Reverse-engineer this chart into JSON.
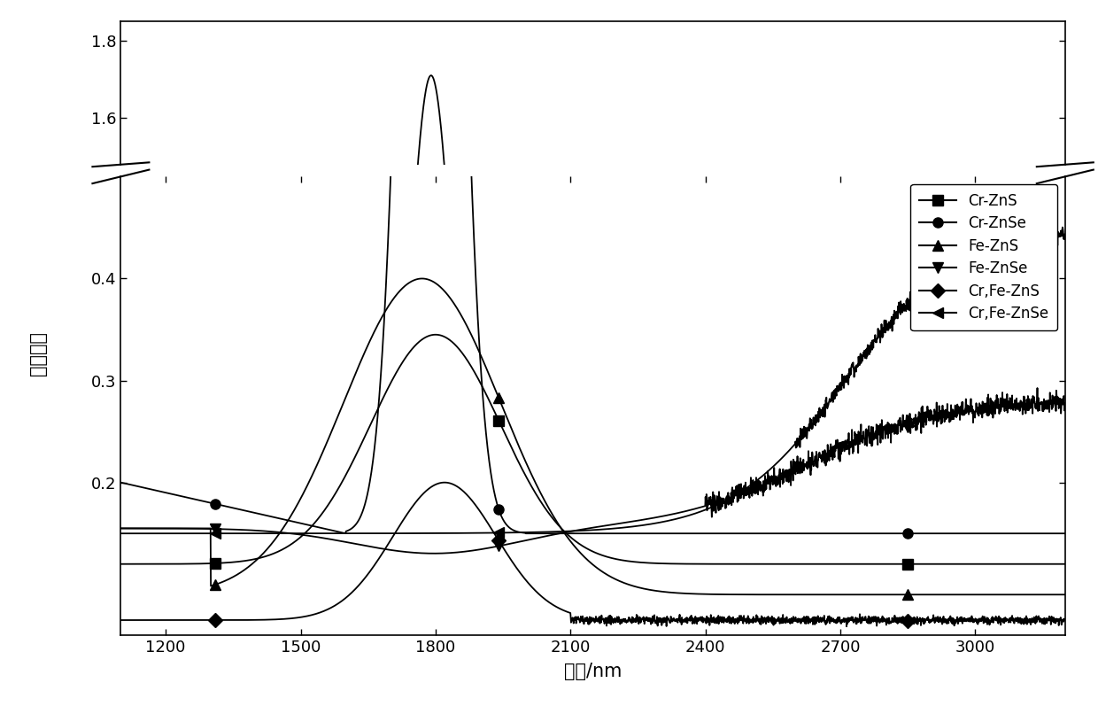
{
  "xlabel": "波长/nm",
  "ylabel": "吸收强度",
  "xlim": [
    1100,
    3200
  ],
  "xticks": [
    1200,
    1500,
    1800,
    2100,
    2400,
    2700,
    3000
  ],
  "yticks_lower": [
    0.2,
    0.3,
    0.4
  ],
  "yticks_upper": [
    1.6,
    1.8
  ],
  "ylim_lower": [
    0.05,
    0.5
  ],
  "ylim_upper": [
    1.48,
    1.85
  ],
  "legend_labels": [
    "Cr-ZnS",
    "Cr-ZnSe",
    "Fe-ZnS",
    "Fe-ZnSe",
    "Cr,Fe-ZnS",
    "Cr,Fe-ZnSe"
  ],
  "legend_markers": [
    "s",
    "o",
    "^",
    "v",
    "D",
    "<"
  ],
  "line_color": "#000000",
  "background_color": "#ffffff"
}
